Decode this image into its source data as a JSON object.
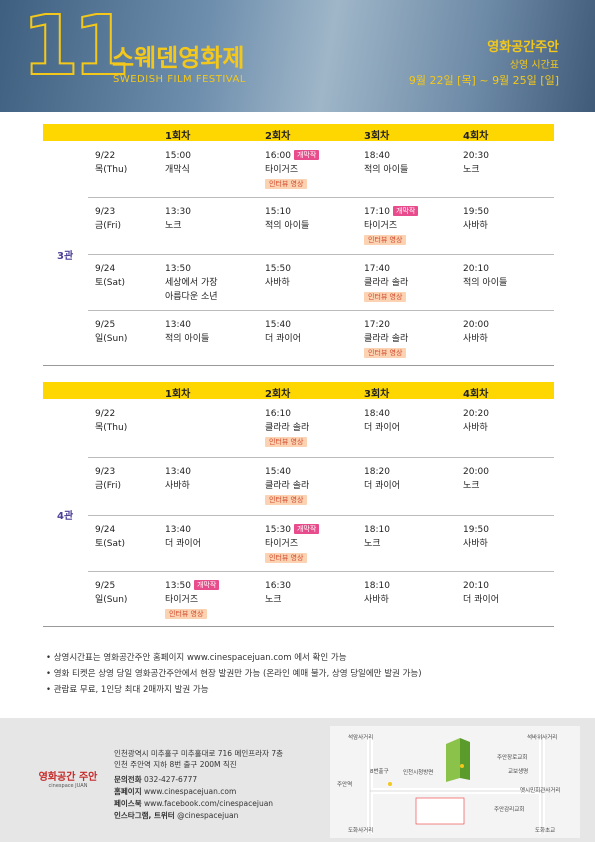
{
  "header": {
    "logo_number": "11",
    "title_ko": "스웨덴영화제",
    "title_en": "SWEDISH FILM FESTIVAL",
    "venue": "영화공간주안",
    "subtitle": "상영 시간표",
    "period": "9월 22일 [목] ~ 9월 25일 [일]"
  },
  "schedules": [
    {
      "hall": "3관",
      "columns": [
        "1회차",
        "2회차",
        "3회차",
        "4회차"
      ],
      "rows": [
        {
          "date": "9/22",
          "day": "목(Thu)",
          "slots": [
            {
              "time": "15:00",
              "title": "개막식"
            },
            {
              "time": "16:00",
              "badge": "개막작",
              "title": "타이거즈",
              "tag": "인터뷰 영상"
            },
            {
              "time": "18:40",
              "title": "적의 아이들"
            },
            {
              "time": "20:30",
              "title": "노크"
            }
          ]
        },
        {
          "date": "9/23",
          "day": "금(Fri)",
          "slots": [
            {
              "time": "13:30",
              "title": "노크"
            },
            {
              "time": "15:10",
              "title": "적의 아이들"
            },
            {
              "time": "17:10",
              "badge": "개막작",
              "title": "타이거즈",
              "tag": "인터뷰 영상"
            },
            {
              "time": "19:50",
              "title": "사바하"
            }
          ]
        },
        {
          "date": "9/24",
          "day": "토(Sat)",
          "slots": [
            {
              "time": "13:50",
              "title": [
                "세상에서 가장",
                "아름다운 소년"
              ]
            },
            {
              "time": "15:50",
              "title": "사바하"
            },
            {
              "time": "17:40",
              "title": "클라라 솔라",
              "tag": "인터뷰 영상"
            },
            {
              "time": "20:10",
              "title": "적의 아이들"
            }
          ]
        },
        {
          "date": "9/25",
          "day": "일(Sun)",
          "slots": [
            {
              "time": "13:40",
              "title": "적의 아이들"
            },
            {
              "time": "15:40",
              "title": "더 콰이어"
            },
            {
              "time": "17:20",
              "title": "클라라 솔라",
              "tag": "인터뷰 영상"
            },
            {
              "time": "20:00",
              "title": "사바하"
            }
          ]
        }
      ]
    },
    {
      "hall": "4관",
      "columns": [
        "1회차",
        "2회차",
        "3회차",
        "4회차"
      ],
      "rows": [
        {
          "date": "9/22",
          "day": "목(Thu)",
          "slots": [
            null,
            {
              "time": "16:10",
              "title": "클라라 솔라",
              "tag": "인터뷰 영상"
            },
            {
              "time": "18:40",
              "title": "더 콰이어"
            },
            {
              "time": "20:20",
              "title": "사바하"
            }
          ]
        },
        {
          "date": "9/23",
          "day": "금(Fri)",
          "slots": [
            {
              "time": "13:40",
              "title": "사바하"
            },
            {
              "time": "15:40",
              "title": "클라라 솔라",
              "tag": "인터뷰 영상"
            },
            {
              "time": "18:20",
              "title": "더 콰이어"
            },
            {
              "time": "20:00",
              "title": "노크"
            }
          ]
        },
        {
          "date": "9/24",
          "day": "토(Sat)",
          "slots": [
            {
              "time": "13:40",
              "title": "더 콰이어"
            },
            {
              "time": "15:30",
              "badge": "개막작",
              "title": "타이거즈",
              "tag": "인터뷰 영상"
            },
            {
              "time": "18:10",
              "title": "노크"
            },
            {
              "time": "19:50",
              "title": "사바하"
            }
          ]
        },
        {
          "date": "9/25",
          "day": "일(Sun)",
          "slots": [
            {
              "time": "13:50",
              "badge": "개막작",
              "title": "타이거즈",
              "tag": "인터뷰 영상"
            },
            {
              "time": "16:30",
              "title": "노크"
            },
            {
              "time": "18:10",
              "title": "사바하"
            },
            {
              "time": "20:10",
              "title": "더 콰이어"
            }
          ]
        }
      ]
    }
  ],
  "notes": [
    "상영시간표는 영화공간주안 홈페이지 www.cinespacejuan.com 에서 확인 가능",
    "영화 티켓은 상영 당일 영화공간주안에서 현장 발권만 가능 (온라인 예매 불가, 상영 당일에만 발권 가능)",
    "관람료 무료, 1인당 최대 2매까지 발권 가능"
  ],
  "footer": {
    "logo": "영화공간 주안",
    "logo_sub": "cinespace JUAN",
    "address": [
      "인천광역시 미추홀구 미추홀대로 716 메인프라자 7층",
      "인천 주안역 지하 8번 출구 200M 직진"
    ],
    "contacts": [
      {
        "label": "문의전화",
        "value": "032-427-6777"
      },
      {
        "label": "홈페이지",
        "value": "www.cinespacejuan.com"
      },
      {
        "label": "페이스북",
        "value": "www.facebook.com/cinespacejuan"
      },
      {
        "label": "인스타그램, 트위터",
        "value": "@cinespacejuan"
      }
    ],
    "map_labels": [
      "석암사거리",
      "석바위사거리",
      "8번출구",
      "인천시청방면",
      "주안장로교회",
      "교보생명",
      "옛시민회관사거리",
      "주안감리교회",
      "도화사거리",
      "도화초교",
      "주안역"
    ]
  }
}
